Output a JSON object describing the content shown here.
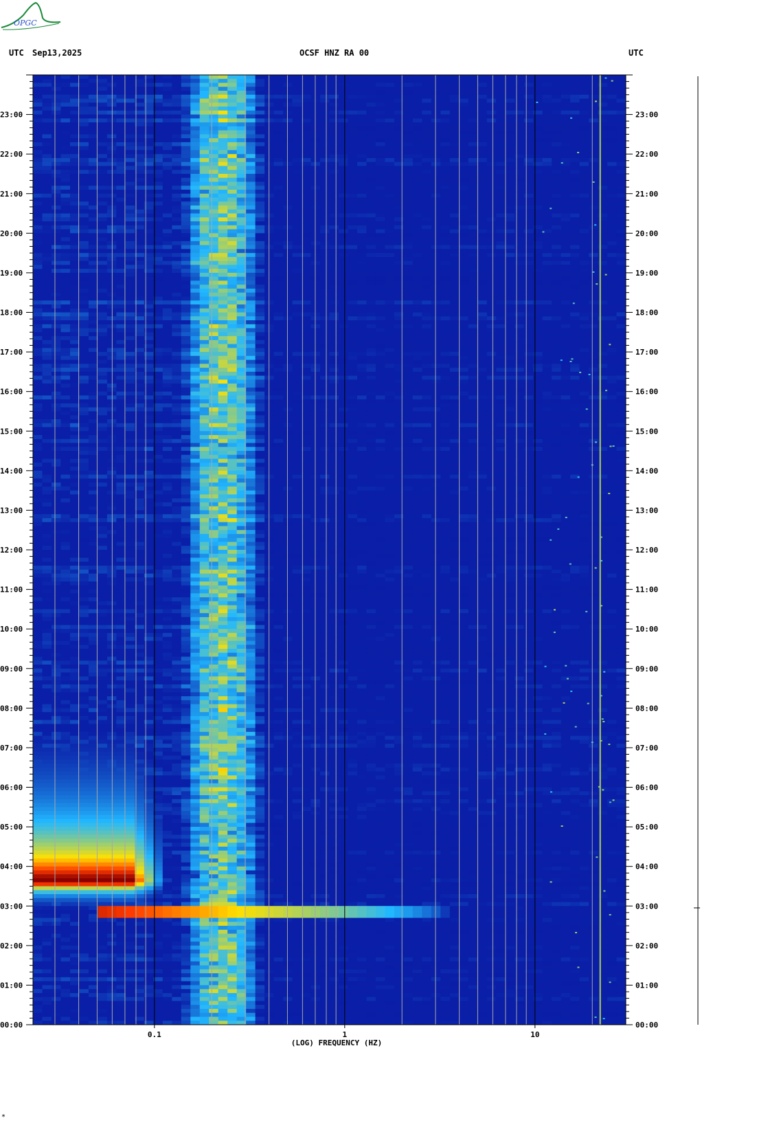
{
  "logo": {
    "text": "OPGC",
    "icon": "opgc-logo-icon",
    "color": "#1a8a3a"
  },
  "header": {
    "left_timezone": "UTC",
    "date": "Sep13,2025",
    "title": "OCSF HNZ RA 00",
    "right_timezone": "UTC"
  },
  "colors": {
    "background": "#0a1fa8",
    "low": "#0a18a0",
    "mid": "#22b8ff",
    "hot": "#ffe000",
    "peak": "#8b0000"
  },
  "chart_data": {
    "type": "heatmap",
    "title": "OCSF HNZ RA 00",
    "xlabel": "(LOG) FREQUENCY (HZ)",
    "ylabel": "",
    "x_scale": "log",
    "xlim": [
      0.023,
      30
    ],
    "x_tick_values": [
      0.1,
      1,
      10
    ],
    "x_tick_labels": [
      "0.1",
      "1",
      "10"
    ],
    "ylim_hours": [
      0,
      24
    ],
    "y_tick_labels": [
      "00:00",
      "01:00",
      "02:00",
      "03:00",
      "04:00",
      "05:00",
      "06:00",
      "07:00",
      "08:00",
      "09:00",
      "10:00",
      "11:00",
      "12:00",
      "13:00",
      "14:00",
      "15:00",
      "16:00",
      "17:00",
      "18:00",
      "19:00",
      "20:00",
      "21:00",
      "22:00",
      "23:00"
    ],
    "features": [
      {
        "kind": "microseism-band",
        "f_low": 0.14,
        "f_high": 0.38,
        "t_start": 0,
        "t_end": 24,
        "level": 0.45
      },
      {
        "kind": "event-energy",
        "f_low": 0.023,
        "f_high": 0.12,
        "t_start": 2.8,
        "t_end": 8.2,
        "peak_time": 3.6,
        "level": 1.0
      },
      {
        "kind": "event-onset-line",
        "f_low": 0.05,
        "f_high": 3.5,
        "t_start": 2.75,
        "t_end": 2.95,
        "level": 0.9
      },
      {
        "kind": "high-freq-line",
        "frequency": 22,
        "t_start": 0,
        "t_end": 24,
        "level": 0.6
      }
    ]
  },
  "bottom_mark": "*"
}
